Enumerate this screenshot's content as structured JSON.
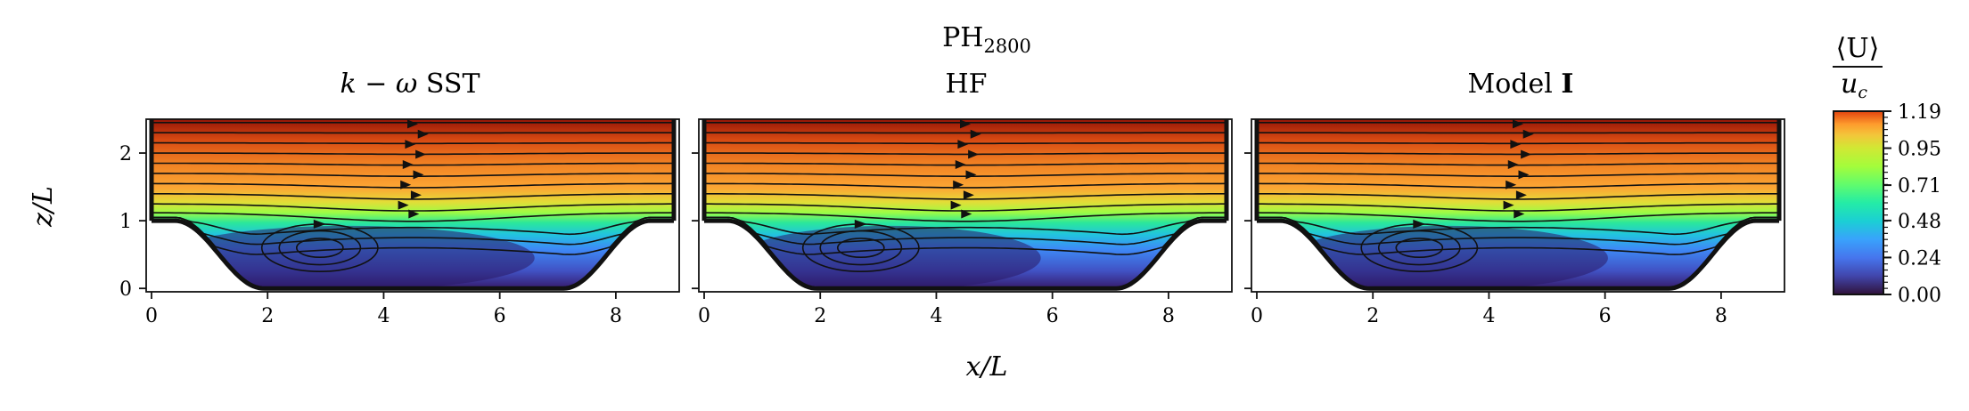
{
  "figure": {
    "suptitle_base": "PH",
    "suptitle_sub": "2800"
  },
  "colorbar": {
    "num": "⟨U⟩",
    "den": "u",
    "den_sub": "c",
    "min": 0.0,
    "max": 1.19,
    "tick_labels": [
      "1.19",
      "0.95",
      "0.71",
      "0.48",
      "0.24",
      "0.00"
    ],
    "colormap": "turbo"
  },
  "chart_data": [
    {
      "type": "heatmap",
      "title_parts": [
        "k",
        " − ",
        "ω",
        " SST"
      ],
      "field": "mean streamwise velocity ⟨U⟩/u_c with streamlines",
      "xlabel": "x/L",
      "ylabel": "z/L",
      "xlim": [
        0,
        9
      ],
      "ylim": [
        0,
        2.5
      ],
      "x_ticks": [
        "0",
        "2",
        "4",
        "6",
        "8"
      ],
      "y_ticks": [
        "0",
        "1",
        "2"
      ],
      "recirculation_core": [
        2.6,
        0.6
      ],
      "reattachment_x": 6.8,
      "geometry": "periodic hills, hill height 1, domain height 3.036"
    },
    {
      "type": "heatmap",
      "title_parts": [
        "HF"
      ],
      "field": "mean streamwise velocity ⟨U⟩/u_c with streamlines",
      "xlabel": "x/L",
      "ylabel": "",
      "xlim": [
        0,
        9
      ],
      "ylim": [
        0,
        2.5
      ],
      "x_ticks": [
        "0",
        "2",
        "4",
        "6",
        "8"
      ],
      "y_ticks": [],
      "recirculation_core": [
        2.4,
        0.6
      ],
      "reattachment_x": 5.6,
      "geometry": "periodic hills, hill height 1, domain height 3.036"
    },
    {
      "type": "heatmap",
      "title_parts": [
        "Model ",
        "I"
      ],
      "field": "mean streamwise velocity ⟨U⟩/u_c with streamlines",
      "xlabel": "",
      "ylabel": "",
      "xlim": [
        0,
        9
      ],
      "ylim": [
        0,
        2.5
      ],
      "x_ticks": [
        "0",
        "2",
        "4",
        "6",
        "8"
      ],
      "y_ticks": [],
      "recirculation_core": [
        2.5,
        0.6
      ],
      "reattachment_x": 5.9,
      "geometry": "periodic hills, hill height 1, domain height 3.036"
    }
  ]
}
